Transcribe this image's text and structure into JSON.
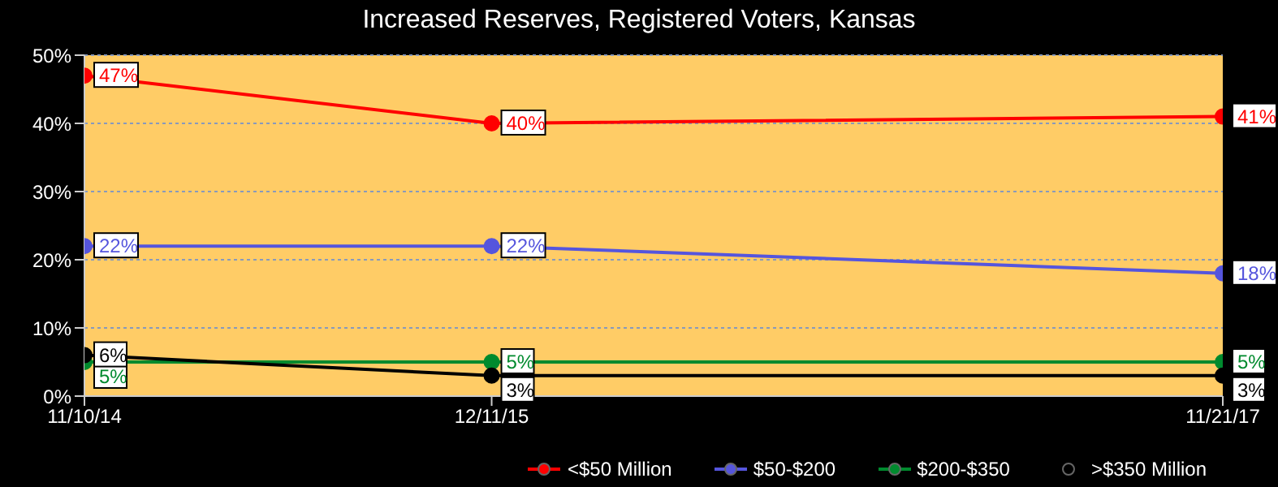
{
  "chart_data": {
    "type": "line",
    "title": "Increased Reserves, Registered Voters, Kansas",
    "x": [
      "2014-11-10",
      "2015-12-11",
      "2017-11-21"
    ],
    "xlim": [
      "2014-11-10",
      "2017-11-21"
    ],
    "xticks": [
      {
        "value": "2014-11-10",
        "label": "11/10/14"
      },
      {
        "value": "2015-12-11",
        "label": "12/11/15"
      },
      {
        "value": "2017-11-21",
        "label": "11/21/17"
      }
    ],
    "ylim": [
      0,
      50
    ],
    "yticks": [
      {
        "value": 0,
        "label": "0%"
      },
      {
        "value": 10,
        "label": "10%"
      },
      {
        "value": 20,
        "label": "20%"
      },
      {
        "value": 30,
        "label": "30%"
      },
      {
        "value": 40,
        "label": "40%"
      },
      {
        "value": 50,
        "label": "50%"
      }
    ],
    "series": [
      {
        "name": "<$50 Million",
        "color": "#ff0000",
        "values": [
          47,
          40,
          41
        ],
        "value_labels": [
          "47%",
          "40%",
          "41%"
        ]
      },
      {
        "name": "$50-$200",
        "color": "#5555dd",
        "values": [
          22,
          22,
          18
        ],
        "value_labels": [
          "22%",
          "22%",
          "18%"
        ]
      },
      {
        "name": "$200-$350",
        "color": "#008a2e",
        "values": [
          5,
          5,
          5
        ],
        "value_labels": [
          "5%",
          "5%",
          "5%"
        ]
      },
      {
        "name": ">$350 Million",
        "color": "#000000",
        "values": [
          6,
          3,
          3
        ],
        "value_labels": [
          "6%",
          "3%",
          "3%"
        ]
      }
    ],
    "grid": "y",
    "legend": "bottom right",
    "marker": "circle",
    "line_style": "solid"
  }
}
